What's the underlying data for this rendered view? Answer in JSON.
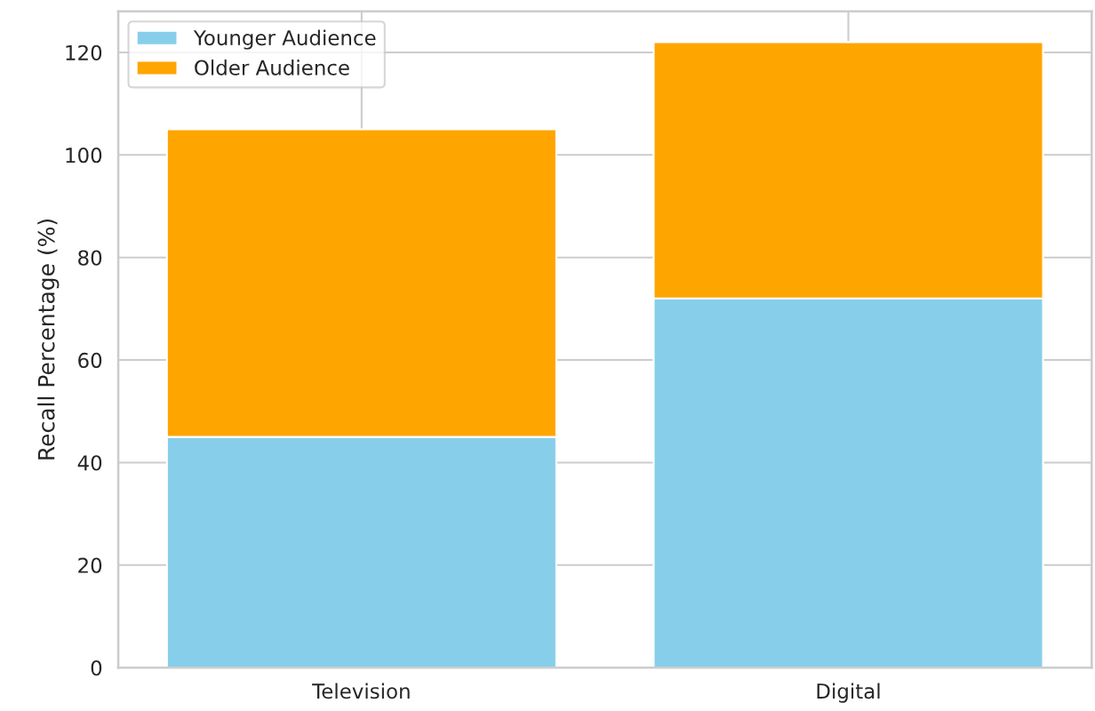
{
  "chart_data": {
    "type": "bar",
    "stacked": true,
    "ylabel": "Recall Percentage (%)",
    "categories": [
      "Television",
      "Digital"
    ],
    "series": [
      {
        "name": "Younger Audience",
        "color": "#87ceeb",
        "values": [
          45,
          72
        ]
      },
      {
        "name": "Older Audience",
        "color": "#ffa500",
        "values": [
          60,
          50
        ]
      }
    ],
    "ylim": [
      0,
      128
    ],
    "yticks": [
      0,
      20,
      40,
      60,
      80,
      100,
      120
    ],
    "grid": true,
    "legend": "top left"
  }
}
